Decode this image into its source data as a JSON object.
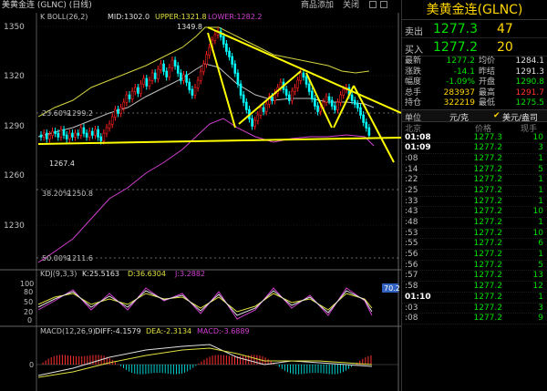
{
  "header": {
    "title": "美黄金连 (GLNC) (日线)",
    "btn_add": "商品添加",
    "btn_close": "关闭"
  },
  "chart": {
    "indicator_label": "K  BOLL(26,2)",
    "mid_label": "MID:1302.0",
    "upper_label": "UPPER:1321.8",
    "lower_label": "LOWER:1282.2",
    "y_ticks": [
      "1350",
      "1320",
      "1290",
      "1260",
      "1230"
    ],
    "high_marker": "1349.8",
    "low_marker": "1267.4",
    "fib_1": "23.60%",
    "fib_1_val": "1299.2",
    "fib_2": "38.20%",
    "fib_2_val": "1250.8",
    "fib_3": "50.00%",
    "fib_3_val": "1211.6",
    "kdj_label": "KDJ(9,3,3)",
    "kdj_k": "K:25.5163",
    "kdj_d": "D:36.6304",
    "kdj_j": "J:3.2882",
    "kdj_badge": "70.2",
    "kdj_ticks": [
      "100",
      "80",
      "50",
      "20",
      "0"
    ],
    "macd_label": "MACD(12,26,9)",
    "macd_diff": "DIFF:-4.1579",
    "macd_dea": "DEA:-2.3134",
    "macd_val": "MACD:-3.6889",
    "macd_tick": "0"
  },
  "panel": {
    "title": "美黄金连(GLNC)",
    "sell_label": "卖出",
    "sell_price": "1277.3",
    "sell_vol": "47",
    "buy_label": "买入",
    "buy_price": "1277.2",
    "buy_vol": "20",
    "stats": [
      {
        "l1": "最新",
        "v1": "1277.2",
        "c1": "green",
        "l2": "均价",
        "v2": "1284.1",
        "c2": "white"
      },
      {
        "l1": "涨跌",
        "v1": "-14.1",
        "c1": "green",
        "l2": "昨结",
        "v2": "1291.3",
        "c2": "white"
      },
      {
        "l1": "幅度",
        "v1": "-1.09%",
        "c1": "green",
        "l2": "开盘",
        "v2": "1290.8",
        "c2": "green"
      },
      {
        "l1": "总手",
        "v1": "283937",
        "c1": "yellow",
        "l2": "最高",
        "v2": "1291.7",
        "c2": "red"
      },
      {
        "l1": "持仓",
        "v1": "322219",
        "c1": "yellow",
        "l2": "最低",
        "v2": "1275.5",
        "c2": "green"
      }
    ],
    "unit_label": "单位",
    "unit_value": "元/克",
    "unit_alt": "美元/盎司",
    "tick_head": {
      "time": "北京",
      "price": "价格",
      "vol": "现手"
    },
    "ticks": [
      {
        "t": "01:08",
        "bold": true,
        "p": "1277.3",
        "v": "10"
      },
      {
        "t": "01:09",
        "bold": true,
        "p": "1277.2",
        "v": "3"
      },
      {
        "t": ":08",
        "bold": false,
        "p": "1277.2",
        "v": "1"
      },
      {
        "t": ":14",
        "bold": false,
        "p": "1277.2",
        "v": "5"
      },
      {
        "t": ":22",
        "bold": false,
        "p": "1277.2",
        "v": "1"
      },
      {
        "t": ":25",
        "bold": false,
        "p": "1277.2",
        "v": "1"
      },
      {
        "t": ":33",
        "bold": false,
        "p": "1277.2",
        "v": "1"
      },
      {
        "t": ":43",
        "bold": false,
        "p": "1277.2",
        "v": "10"
      },
      {
        "t": ":48",
        "bold": false,
        "p": "1277.2",
        "v": "1"
      },
      {
        "t": ":53",
        "bold": false,
        "p": "1277.2",
        "v": "10"
      },
      {
        "t": ":55",
        "bold": false,
        "p": "1277.2",
        "v": "6"
      },
      {
        "t": ":56",
        "bold": false,
        "p": "1277.2",
        "v": "1"
      },
      {
        "t": ":56",
        "bold": false,
        "p": "1277.2",
        "v": "5"
      },
      {
        "t": ":57",
        "bold": false,
        "p": "1277.2",
        "v": "13"
      },
      {
        "t": ":58",
        "bold": false,
        "p": "1277.2",
        "v": "12"
      },
      {
        "t": "01:10",
        "bold": true,
        "p": "1277.2",
        "v": "1"
      },
      {
        "t": ":03",
        "bold": false,
        "p": "1277.2",
        "v": "3"
      },
      {
        "t": ":08",
        "bold": false,
        "p": "1277.2",
        "v": "9"
      }
    ]
  },
  "colors": {
    "up_candle": "#ff2020",
    "down_candle": "#00ffff",
    "boll_upper": "#e0e040",
    "boll_lower": "#d040d0",
    "trend_line": "#ffff00"
  }
}
